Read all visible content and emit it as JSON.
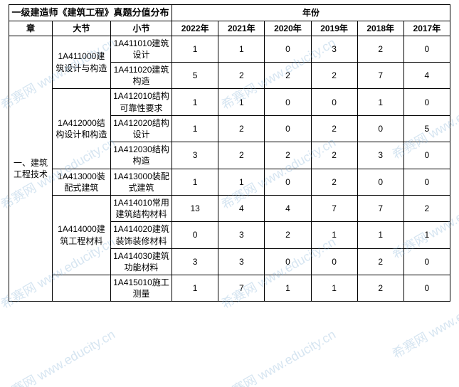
{
  "watermark_text": "希赛网 www.educity.cn",
  "table": {
    "title": "一级建造师《建筑工程》真题分值分布",
    "year_header": "年份",
    "headers": {
      "chapter": "章",
      "major": "大节",
      "minor": "小节",
      "years": [
        "2022年",
        "2021年",
        "2020年",
        "2019年",
        "2018年",
        "2017年"
      ]
    },
    "chapter_label": "一、建筑工程技术",
    "majors": [
      {
        "label": "1A411000建筑设计与构造",
        "minors": [
          {
            "label": "1A411010建筑设计",
            "values": [
              "1",
              "1",
              "0",
              "3",
              "2",
              "0"
            ]
          },
          {
            "label": "1A411020建筑构造",
            "values": [
              "5",
              "2",
              "2",
              "2",
              "7",
              "4"
            ]
          }
        ]
      },
      {
        "label": "1A412000结构设计和构造",
        "minors": [
          {
            "label": "1A412010结构可靠性要求",
            "values": [
              "1",
              "1",
              "0",
              "0",
              "1",
              "0"
            ]
          },
          {
            "label": "1A412020结构设计",
            "values": [
              "1",
              "2",
              "0",
              "2",
              "0",
              "5"
            ]
          },
          {
            "label": "1A412030结构构造",
            "values": [
              "3",
              "2",
              "2",
              "2",
              "3",
              "0"
            ]
          }
        ]
      },
      {
        "label": "1A413000装配式建筑",
        "minors": [
          {
            "label": "1A413000装配式建筑",
            "values": [
              "1",
              "1",
              "0",
              "2",
              "0",
              "0"
            ]
          }
        ]
      },
      {
        "label": "1A414000建筑工程材料",
        "minors": [
          {
            "label": "1A414010常用建筑结构材料",
            "values": [
              "13",
              "4",
              "4",
              "7",
              "7",
              "2"
            ]
          },
          {
            "label": "1A414020建筑装饰装修材料",
            "values": [
              "0",
              "3",
              "2",
              "1",
              "1",
              "1"
            ]
          },
          {
            "label": "1A414030建筑功能材料",
            "values": [
              "3",
              "3",
              "0",
              "0",
              "2",
              "0"
            ]
          }
        ]
      },
      {
        "label": "",
        "minors": [
          {
            "label": "1A415010施工测量",
            "values": [
              "1",
              "7",
              "1",
              "1",
              "2",
              "0"
            ]
          }
        ]
      }
    ]
  },
  "style": {
    "border_color": "#000000",
    "background": "#ffffff",
    "font_size_body": 12,
    "font_size_title": 13,
    "watermark_color": "rgba(120,170,210,0.3)",
    "watermark_fontsize": 18,
    "watermark_rotation_deg": -30
  }
}
